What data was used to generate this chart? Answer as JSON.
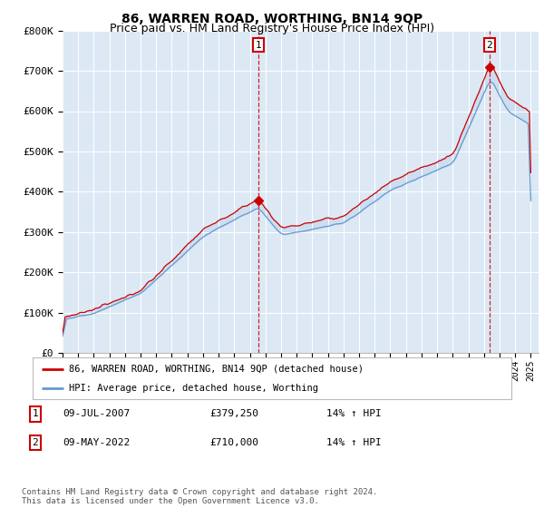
{
  "title": "86, WARREN ROAD, WORTHING, BN14 9QP",
  "subtitle": "Price paid vs. HM Land Registry's House Price Index (HPI)",
  "background_color": "#dce9f5",
  "fig_bg_color": "#ffffff",
  "ylim": [
    0,
    800000
  ],
  "yticks": [
    0,
    100000,
    200000,
    300000,
    400000,
    500000,
    600000,
    700000,
    800000
  ],
  "ytick_labels": [
    "£0",
    "£100K",
    "£200K",
    "£300K",
    "£400K",
    "£500K",
    "£600K",
    "£700K",
    "£800K"
  ],
  "sale1_date": 2007.55,
  "sale1_price": 379250,
  "sale1_label": "1",
  "sale2_date": 2022.36,
  "sale2_price": 710000,
  "sale2_label": "2",
  "red_line_color": "#cc0000",
  "blue_line_color": "#6699cc",
  "fill_color": "#c8daf0",
  "annotation_box_color": "#cc0000",
  "legend_label_red": "86, WARREN ROAD, WORTHING, BN14 9QP (detached house)",
  "legend_label_blue": "HPI: Average price, detached house, Worthing",
  "table_row1": [
    "1",
    "09-JUL-2007",
    "£379,250",
    "14% ↑ HPI"
  ],
  "table_row2": [
    "2",
    "09-MAY-2022",
    "£710,000",
    "14% ↑ HPI"
  ],
  "footer": "Contains HM Land Registry data © Crown copyright and database right 2024.\nThis data is licensed under the Open Government Licence v3.0.",
  "title_fontsize": 10,
  "subtitle_fontsize": 9
}
